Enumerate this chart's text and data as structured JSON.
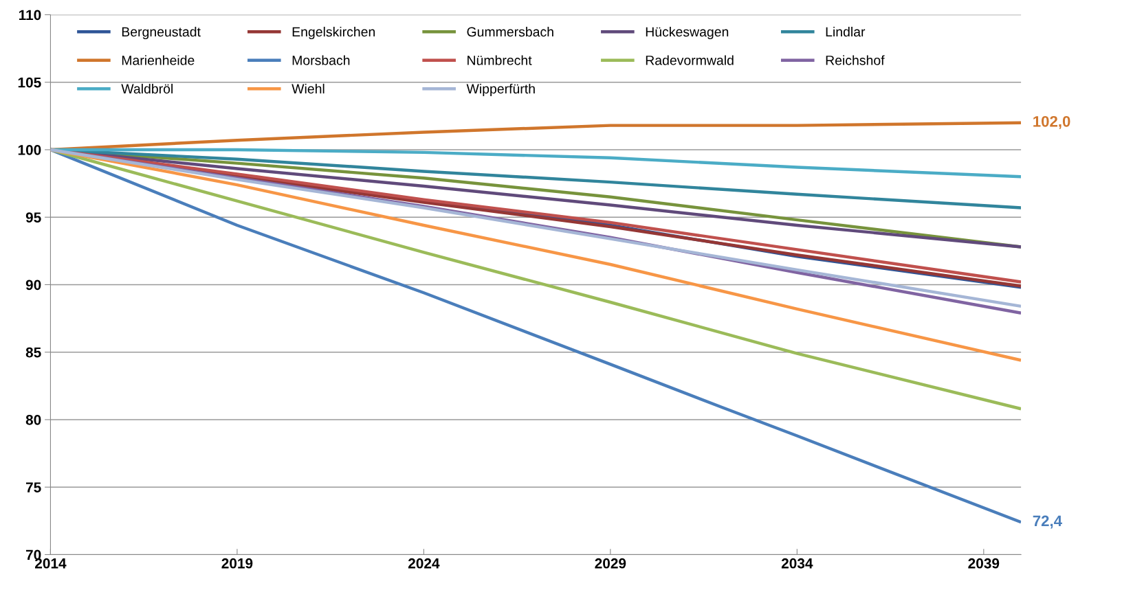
{
  "chart_data": {
    "type": "line",
    "x": [
      2014,
      2019,
      2024,
      2029,
      2034,
      2040
    ],
    "series": [
      {
        "name": "Bergneustadt",
        "color": "#2f5597",
        "values": [
          100,
          98.1,
          96.2,
          94.4,
          92.1,
          89.8
        ]
      },
      {
        "name": "Engelskirchen",
        "color": "#953735",
        "values": [
          100,
          98.0,
          96.1,
          94.3,
          92.2,
          89.9
        ]
      },
      {
        "name": "Gummersbach",
        "color": "#77933c",
        "values": [
          100,
          99.0,
          97.9,
          96.5,
          94.8,
          92.8
        ]
      },
      {
        "name": "Hückeswagen",
        "color": "#604a7b",
        "values": [
          100,
          98.6,
          97.3,
          95.9,
          94.4,
          92.8
        ]
      },
      {
        "name": "Lindlar",
        "color": "#31859c",
        "values": [
          100,
          99.3,
          98.4,
          97.6,
          96.7,
          95.7
        ]
      },
      {
        "name": "Marienheide",
        "color": "#d0762c",
        "values": [
          100,
          100.7,
          101.3,
          101.8,
          101.8,
          102.0
        ]
      },
      {
        "name": "Morsbach",
        "color": "#4a7ebb",
        "x": [
          2014,
          2019,
          2024,
          2029,
          2032,
          2034,
          2040
        ],
        "values": [
          100,
          94.4,
          89.4,
          84.1,
          80.9,
          78.8,
          72.4
        ]
      },
      {
        "name": "Nümbrecht",
        "color": "#c0504d",
        "values": [
          100,
          98.2,
          96.3,
          94.6,
          92.6,
          90.2
        ]
      },
      {
        "name": "Radevormwald",
        "color": "#9bbb59",
        "values": [
          100,
          96.2,
          92.4,
          88.7,
          84.9,
          80.8
        ]
      },
      {
        "name": "Reichshof",
        "color": "#8064a2",
        "values": [
          100,
          97.9,
          95.8,
          93.5,
          90.9,
          87.9
        ]
      },
      {
        "name": "Waldbröl",
        "color": "#4bacc6",
        "values": [
          100,
          100.0,
          99.8,
          99.4,
          98.7,
          98.0
        ]
      },
      {
        "name": "Wiehl",
        "color": "#f79646",
        "values": [
          100,
          97.4,
          94.4,
          91.5,
          88.2,
          84.4
        ]
      },
      {
        "name": "Wipperfürth",
        "color": "#a5b6d6",
        "values": [
          100,
          97.8,
          95.7,
          93.4,
          91.1,
          88.4
        ]
      }
    ],
    "xlim": [
      2014,
      2040
    ],
    "xticks": [
      2014,
      2019,
      2024,
      2029,
      2034,
      2039
    ],
    "ylim": [
      70,
      110
    ],
    "yticks": [
      70,
      75,
      80,
      85,
      90,
      95,
      100,
      105,
      110
    ],
    "grid": "y",
    "legend": "top left",
    "marker": "none",
    "line_style": "solid",
    "annotations": [
      {
        "text": "102,0",
        "x": 2040,
        "y": 102.0
      },
      {
        "text": "72,4",
        "x": 2040,
        "y": 72.4
      }
    ]
  }
}
